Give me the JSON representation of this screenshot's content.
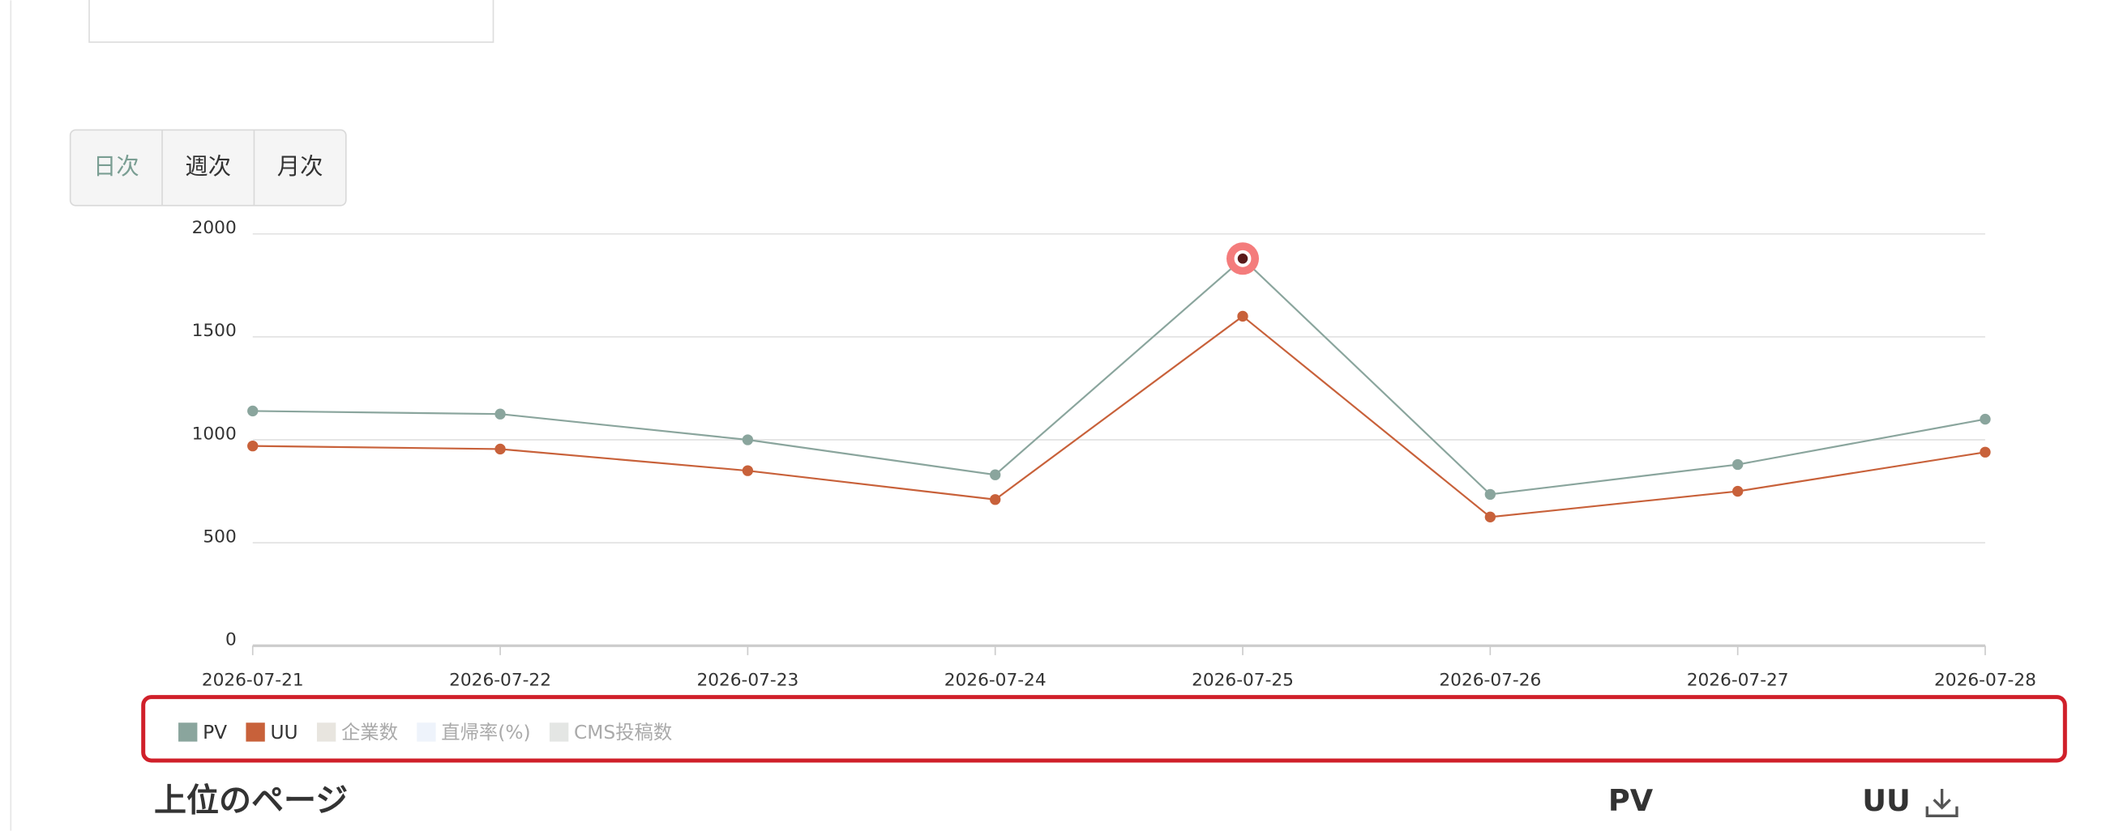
{
  "tabs": [
    "日次",
    "週次",
    "月次"
  ],
  "chart_data": {
    "type": "line",
    "categories": [
      "2026-07-21",
      "2026-07-22",
      "2026-07-23",
      "2026-07-24",
      "2026-07-25",
      "2026-07-26",
      "2026-07-27",
      "2026-07-28"
    ],
    "series": [
      {
        "name": "PV",
        "color": "#8aa59d",
        "values": [
          1140,
          1125,
          1000,
          830,
          1880,
          735,
          880,
          1100
        ]
      },
      {
        "name": "UU",
        "color": "#c8613a",
        "values": [
          970,
          955,
          850,
          710,
          1600,
          625,
          750,
          940
        ]
      }
    ],
    "hidden_series": [
      {
        "name": "企業数",
        "color": "#e8e5df"
      },
      {
        "name": "直帰率(%)",
        "color": "#eef3fb"
      },
      {
        "name": "CMS投稿数",
        "color": "#e4e6e4"
      }
    ],
    "ylim": [
      0,
      2000
    ],
    "yticks": [
      0,
      500,
      1000,
      1500,
      2000
    ],
    "grid": true
  },
  "table_header": {
    "title": "上位のページ",
    "columns": [
      "PV",
      "UU"
    ]
  }
}
